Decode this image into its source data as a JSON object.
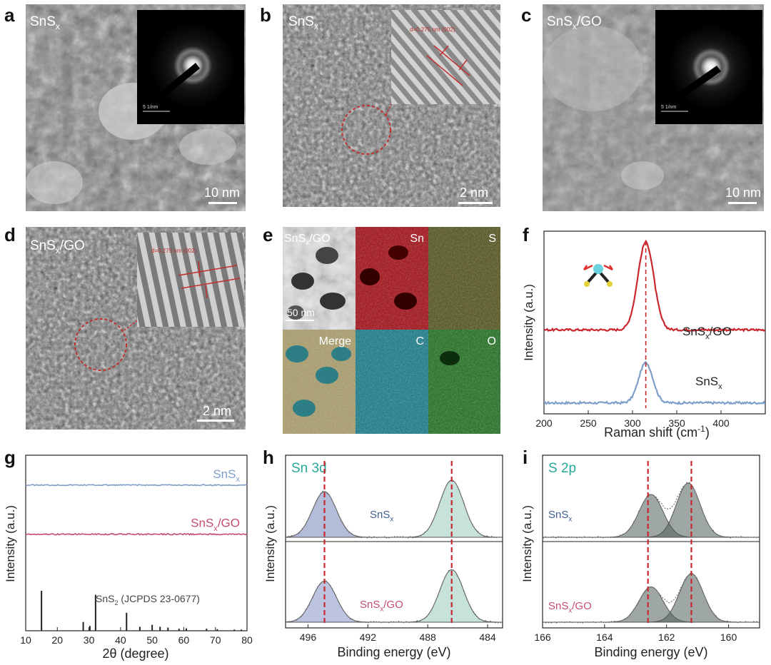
{
  "panels": {
    "a": {
      "label": "a",
      "sample": "SnS",
      "sub": "x",
      "scale": "10 nm",
      "saed_scale": "5 1/nm"
    },
    "b": {
      "label": "b",
      "sample": "SnS",
      "sub": "x",
      "scale": "2 nm",
      "inset_text": "d=0.275 nm (002)"
    },
    "c": {
      "label": "c",
      "sample": "SnS",
      "sub": "x",
      "suffix": "/GO",
      "scale": "10 nm",
      "saed_scale": "5 1/nm"
    },
    "d": {
      "label": "d",
      "sample": "SnS",
      "sub": "x",
      "suffix": "/GO",
      "scale": "2 nm",
      "inset_text": "d=0.275 nm (002)"
    },
    "e": {
      "label": "e",
      "sample": "SnS",
      "sub": "x",
      "suffix": "/GO",
      "scale": "50 nm",
      "maps": [
        "Sn",
        "S",
        "Merge",
        "C",
        "O"
      ]
    },
    "f": {
      "label": "f"
    },
    "g": {
      "label": "g"
    },
    "h": {
      "label": "h"
    },
    "i": {
      "label": "i"
    }
  },
  "colors": {
    "red": "#c8282e",
    "blue": "#7f9fc8",
    "teal": "#2aa89a",
    "pink": "#c44d6e",
    "map_sn": "#c0141c",
    "map_s": "#c8c236",
    "map_c": "#1f8a9a",
    "map_o": "#3aa33a"
  },
  "chart_data": [
    {
      "id": "f",
      "type": "line",
      "title": "",
      "xlabel": "Raman shift (cm",
      "xlabel_sup": "-1",
      "xlabel_end": ")",
      "ylabel": "Intensity (a.u.)",
      "xlim": [
        200,
        450
      ],
      "xticks": [
        200,
        250,
        300,
        350,
        400
      ],
      "ylim": [
        0,
        1
      ],
      "reference_line_x": 315,
      "series": [
        {
          "name": "SnS",
          "sub": "x",
          "suffix": "",
          "color": "#7f9fc8",
          "baseline": 0.06,
          "peak_x": 315,
          "peak_height": 0.22,
          "width": 8
        },
        {
          "name": "SnS",
          "sub": "x",
          "suffix": "/GO",
          "color": "#c8282e",
          "baseline": 0.46,
          "peak_x": 315,
          "peak_height": 0.48,
          "width": 9
        }
      ]
    },
    {
      "id": "g",
      "type": "line",
      "xlabel": "2θ (degree)",
      "ylabel": "Intensity (a.u.)",
      "xlim": [
        10,
        80
      ],
      "xticks": [
        10,
        20,
        30,
        40,
        50,
        60,
        70,
        80
      ],
      "series": [
        {
          "name": "SnS",
          "sub": "x",
          "suffix": "",
          "color": "#7f9fc8",
          "level": 0.83
        },
        {
          "name": "SnS",
          "sub": "x",
          "suffix": "/GO",
          "color": "#c44d6e",
          "level": 0.55
        }
      ],
      "reference": {
        "label": "SnS",
        "sub": "2",
        "rest": " (JCPDS 23-0677)",
        "peaks": [
          [
            15.0,
            1.0
          ],
          [
            28.2,
            0.22
          ],
          [
            30.3,
            0.12
          ],
          [
            32.1,
            0.9
          ],
          [
            41.9,
            0.45
          ],
          [
            46.1,
            0.1
          ],
          [
            50.0,
            0.15
          ],
          [
            52.5,
            0.1
          ],
          [
            55.0,
            0.08
          ],
          [
            58.5,
            0.05
          ],
          [
            60.8,
            0.06
          ],
          [
            67.2,
            0.05
          ],
          [
            70.6,
            0.04
          ],
          [
            76.0,
            0.03
          ],
          [
            78.2,
            0.03
          ]
        ]
      }
    },
    {
      "id": "h",
      "type": "line",
      "title": "Sn 3d",
      "xlabel": "Binding energy (eV)",
      "ylabel": "Intensity (a.u.)",
      "xlim": [
        497.5,
        483
      ],
      "xticks": [
        496,
        492,
        488,
        484
      ],
      "reference_lines": [
        494.9,
        486.4
      ],
      "series": [
        {
          "name": "SnS",
          "sub": "x",
          "suffix": "",
          "peaks": [
            [
              494.9,
              0.8
            ],
            [
              486.4,
              1.0
            ]
          ]
        },
        {
          "name": "SnS",
          "sub": "x",
          "suffix": "/GO",
          "peaks": [
            [
              494.9,
              0.72
            ],
            [
              486.4,
              0.92
            ]
          ]
        }
      ]
    },
    {
      "id": "i",
      "type": "line",
      "title": "S 2p",
      "xlabel": "Binding energy (eV)",
      "ylabel": "Intensity (a.u.)",
      "xlim": [
        166,
        159
      ],
      "xticks": [
        166,
        164,
        162,
        160
      ],
      "reference_lines": [
        162.6,
        161.2
      ],
      "series": [
        {
          "name": "SnS",
          "sub": "x",
          "suffix": "",
          "peaks": [
            [
              162.5,
              0.75
            ],
            [
              161.3,
              0.95
            ]
          ]
        },
        {
          "name": "SnS",
          "sub": "x",
          "suffix": "/GO",
          "peaks": [
            [
              162.5,
              0.62
            ],
            [
              161.2,
              0.85
            ]
          ]
        }
      ]
    }
  ]
}
